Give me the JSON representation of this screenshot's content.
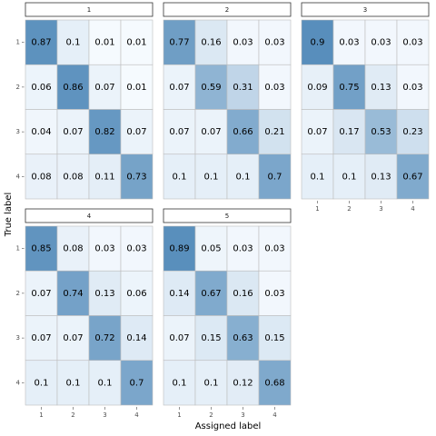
{
  "chart_data": {
    "type": "heatmap",
    "xlabel": "Assigned label",
    "ylabel": "True label",
    "x_ticks": [
      "1",
      "2",
      "3",
      "4"
    ],
    "y_ticks": [
      "1",
      "2",
      "3",
      "4"
    ],
    "value_range": [
      0,
      1
    ],
    "colors": {
      "low": "#f7fbff",
      "high": "#4682b4",
      "cell_border": "#bdbdbd",
      "strip_border": "#333333"
    },
    "facets": [
      {
        "name": "1",
        "matrix": [
          [
            0.87,
            0.1,
            0.01,
            0.01
          ],
          [
            0.06,
            0.86,
            0.07,
            0.01
          ],
          [
            0.04,
            0.07,
            0.82,
            0.07
          ],
          [
            0.08,
            0.08,
            0.11,
            0.73
          ]
        ]
      },
      {
        "name": "2",
        "matrix": [
          [
            0.77,
            0.16,
            0.03,
            0.03
          ],
          [
            0.07,
            0.59,
            0.31,
            0.03
          ],
          [
            0.07,
            0.07,
            0.66,
            0.21
          ],
          [
            0.1,
            0.1,
            0.1,
            0.7
          ]
        ]
      },
      {
        "name": "3",
        "matrix": [
          [
            0.9,
            0.03,
            0.03,
            0.03
          ],
          [
            0.09,
            0.75,
            0.13,
            0.03
          ],
          [
            0.07,
            0.17,
            0.53,
            0.23
          ],
          [
            0.1,
            0.1,
            0.13,
            0.67
          ]
        ]
      },
      {
        "name": "4",
        "matrix": [
          [
            0.85,
            0.08,
            0.03,
            0.03
          ],
          [
            0.07,
            0.74,
            0.13,
            0.06
          ],
          [
            0.07,
            0.07,
            0.72,
            0.14
          ],
          [
            0.1,
            0.1,
            0.1,
            0.7
          ]
        ]
      },
      {
        "name": "5",
        "matrix": [
          [
            0.89,
            0.05,
            0.03,
            0.03
          ],
          [
            0.14,
            0.67,
            0.16,
            0.03
          ],
          [
            0.07,
            0.15,
            0.63,
            0.15
          ],
          [
            0.1,
            0.1,
            0.12,
            0.68
          ]
        ]
      }
    ]
  }
}
